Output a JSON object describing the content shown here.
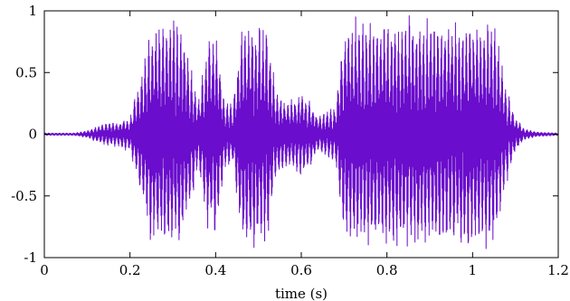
{
  "chart_data": {
    "type": "line",
    "title": "",
    "xlabel": "time (s)",
    "ylabel": "",
    "xlim": [
      0,
      1.2
    ],
    "ylim": [
      -1,
      1
    ],
    "grid": false,
    "x_ticks": [
      0,
      0.2,
      0.4,
      0.6,
      0.8,
      1,
      1.2
    ],
    "x_tick_labels": [
      "0",
      "0.2",
      "0.4",
      "0.6",
      "0.8",
      "1",
      "1.2"
    ],
    "y_ticks": [
      -1,
      -0.5,
      0,
      0.5,
      1
    ],
    "y_tick_labels": [
      "-1",
      "-0.5",
      "0",
      "0.5",
      "1"
    ],
    "series": [
      {
        "color": "#6a0dcc",
        "envelope_time_s": [
          0,
          0.07,
          0.1,
          0.13,
          0.15,
          0.17,
          0.2,
          0.22,
          0.25,
          0.27,
          0.29,
          0.32,
          0.34,
          0.36,
          0.38,
          0.4,
          0.42,
          0.44,
          0.46,
          0.48,
          0.5,
          0.52,
          0.54,
          0.56,
          0.58,
          0.6,
          0.62,
          0.64,
          0.66,
          0.68,
          0.7,
          0.75,
          0.8,
          0.85,
          0.9,
          0.95,
          1.0,
          1.05,
          1.08,
          1.1,
          1.12,
          1.15,
          1.2
        ],
        "envelope_peak_amplitude": [
          0.01,
          0.01,
          0.03,
          0.08,
          0.1,
          0.1,
          0.15,
          0.45,
          0.95,
          0.98,
          1.0,
          0.98,
          0.6,
          0.3,
          0.8,
          0.9,
          0.3,
          0.25,
          0.95,
          0.98,
          1.0,
          0.95,
          0.4,
          0.3,
          0.3,
          0.35,
          0.3,
          0.15,
          0.2,
          0.25,
          0.95,
          0.98,
          0.98,
          0.98,
          0.98,
          0.98,
          0.98,
          0.95,
          0.4,
          0.15,
          0.05,
          0.02,
          0.01
        ]
      }
    ]
  }
}
